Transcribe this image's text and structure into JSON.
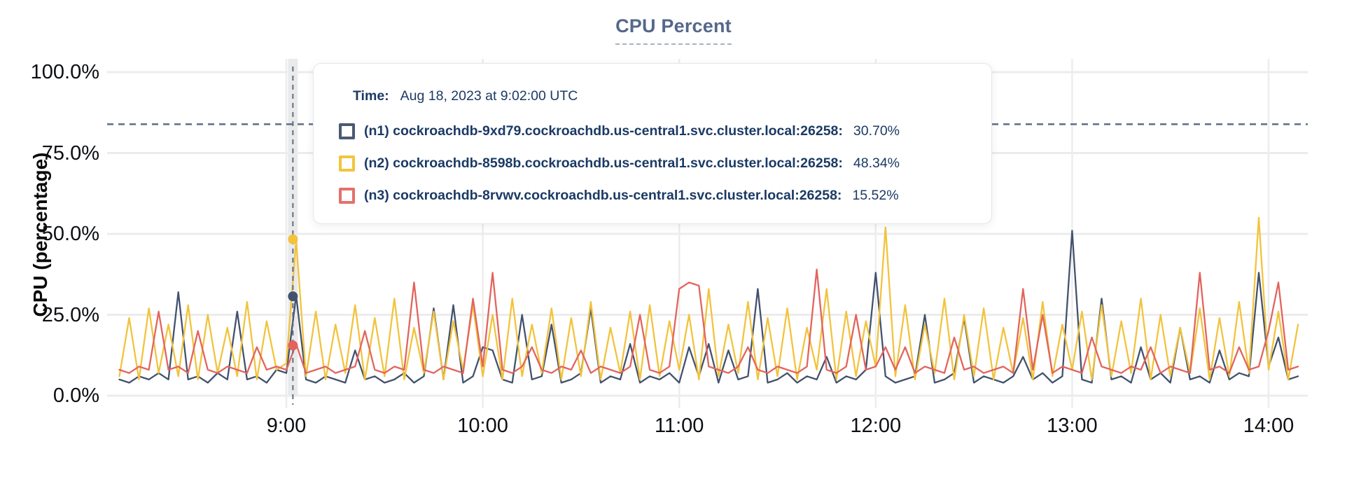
{
  "title": "CPU Percent",
  "y_axis_title": "CPU (percentage)",
  "tooltip": {
    "time_label": "Time:",
    "time_value": "Aug 18, 2023 at 9:02:00 UTC",
    "series": [
      {
        "label": "(n1) cockroachdb-9xd79.cockroachdb.us-central1.svc.cluster.local:26258:",
        "value": "30.70%",
        "color": "#4a5a72"
      },
      {
        "label": "(n2) cockroachdb-8598b.cockroachdb.us-central1.svc.cluster.local:26258:",
        "value": "48.34%",
        "color": "#f2c53d"
      },
      {
        "label": "(n3) cockroachdb-8rvwv.cockroachdb.us-central1.svc.cluster.local:26258:",
        "value": "15.52%",
        "color": "#e4716b"
      }
    ]
  },
  "chart_data": {
    "type": "line",
    "title": "CPU Percent",
    "xlabel": "",
    "ylabel": "CPU (percentage)",
    "ylim": [
      0,
      100
    ],
    "grid": true,
    "legend_position": "tooltip-overlay",
    "y_ticks_percent": [
      100,
      75,
      50,
      25,
      0
    ],
    "y_tick_labels": [
      "100.0%",
      "75.0%",
      "50.0%",
      "25.0%",
      "0.0%"
    ],
    "x_tick_minutes": [
      540,
      600,
      660,
      720,
      780,
      840
    ],
    "x_tick_labels": [
      "9:00",
      "10:00",
      "11:00",
      "12:00",
      "13:00",
      "14:00"
    ],
    "x_start_minutes": 489,
    "x_step_minutes": 3,
    "threshold_percent": 83.9,
    "hover": {
      "time_minutes": 542,
      "time_text": "Aug 18, 2023 at 9:02:00 UTC",
      "values_percent": [
        30.7,
        48.34,
        15.52
      ]
    },
    "series": [
      {
        "name": "(n1) cockroachdb-9xd79.cockroachdb.us-central1.svc.cluster.local:26258",
        "color": "#42526e",
        "values": [
          5,
          4,
          6,
          5,
          7,
          5,
          32,
          5,
          6,
          4,
          7,
          5,
          26,
          5,
          6,
          4,
          8,
          7,
          31,
          5,
          4,
          6,
          5,
          4,
          14,
          5,
          6,
          4,
          5,
          7,
          4,
          6,
          27,
          5,
          28,
          4,
          6,
          15,
          14,
          5,
          4,
          25,
          5,
          6,
          22,
          4,
          5,
          7,
          27,
          4,
          6,
          5,
          16,
          4,
          6,
          5,
          7,
          4,
          15,
          6,
          16,
          4,
          14,
          5,
          6,
          33,
          4,
          5,
          7,
          4,
          6,
          5,
          12,
          4,
          6,
          5,
          8,
          38,
          6,
          4,
          5,
          6,
          25,
          4,
          5,
          7,
          24,
          4,
          6,
          5,
          4,
          6,
          12,
          5,
          7,
          4,
          6,
          51,
          5,
          4,
          30,
          5,
          6,
          4,
          15,
          5,
          7,
          4,
          21,
          5,
          6,
          4,
          14,
          5,
          7,
          6,
          38,
          9,
          18,
          5,
          6
        ]
      },
      {
        "name": "(n2) cockroachdb-8598b.cockroachdb.us-central1.svc.cluster.local:26258",
        "color": "#f2c33c",
        "values": [
          6,
          24,
          5,
          27,
          7,
          22,
          6,
          28,
          5,
          25,
          7,
          21,
          6,
          29,
          5,
          23,
          8,
          10,
          48,
          6,
          26,
          5,
          22,
          7,
          28,
          5,
          24,
          6,
          30,
          5,
          21,
          7,
          26,
          5,
          23,
          8,
          28,
          6,
          25,
          5,
          30,
          6,
          22,
          7,
          27,
          5,
          24,
          6,
          29,
          5,
          21,
          7,
          26,
          5,
          28,
          6,
          23,
          8,
          25,
          5,
          33,
          6,
          22,
          7,
          29,
          5,
          24,
          6,
          27,
          5,
          21,
          8,
          33,
          5,
          26,
          6,
          23,
          9,
          52,
          6,
          28,
          5,
          22,
          7,
          30,
          5,
          25,
          6,
          27,
          5,
          21,
          7,
          24,
          5,
          29,
          6,
          22,
          8,
          26,
          5,
          28,
          6,
          23,
          7,
          30,
          5,
          25,
          6,
          21,
          7,
          27,
          5,
          24,
          6,
          29,
          7,
          55,
          8,
          26,
          5,
          22
        ]
      },
      {
        "name": "(n3) cockroachdb-8rvwv.cockroachdb.us-central1.svc.cluster.local:26258",
        "color": "#e2645d",
        "values": [
          8,
          7,
          9,
          8,
          26,
          8,
          9,
          7,
          20,
          8,
          7,
          9,
          8,
          7,
          15,
          8,
          9,
          8,
          16,
          7,
          8,
          9,
          7,
          8,
          9,
          20,
          8,
          7,
          9,
          8,
          35,
          8,
          7,
          9,
          8,
          7,
          30,
          9,
          38,
          8,
          7,
          9,
          15,
          8,
          7,
          9,
          8,
          14,
          7,
          9,
          8,
          7,
          9,
          25,
          8,
          7,
          9,
          33,
          35,
          34,
          9,
          8,
          7,
          9,
          15,
          8,
          7,
          9,
          8,
          7,
          9,
          39,
          8,
          7,
          9,
          25,
          8,
          9,
          15,
          8,
          15,
          7,
          9,
          8,
          7,
          18,
          8,
          9,
          7,
          8,
          9,
          7,
          33,
          8,
          25,
          7,
          9,
          8,
          7,
          18,
          9,
          8,
          7,
          9,
          8,
          15,
          7,
          9,
          8,
          7,
          38,
          8,
          9,
          7,
          15,
          8,
          9,
          20,
          35,
          8,
          9
        ]
      }
    ]
  }
}
